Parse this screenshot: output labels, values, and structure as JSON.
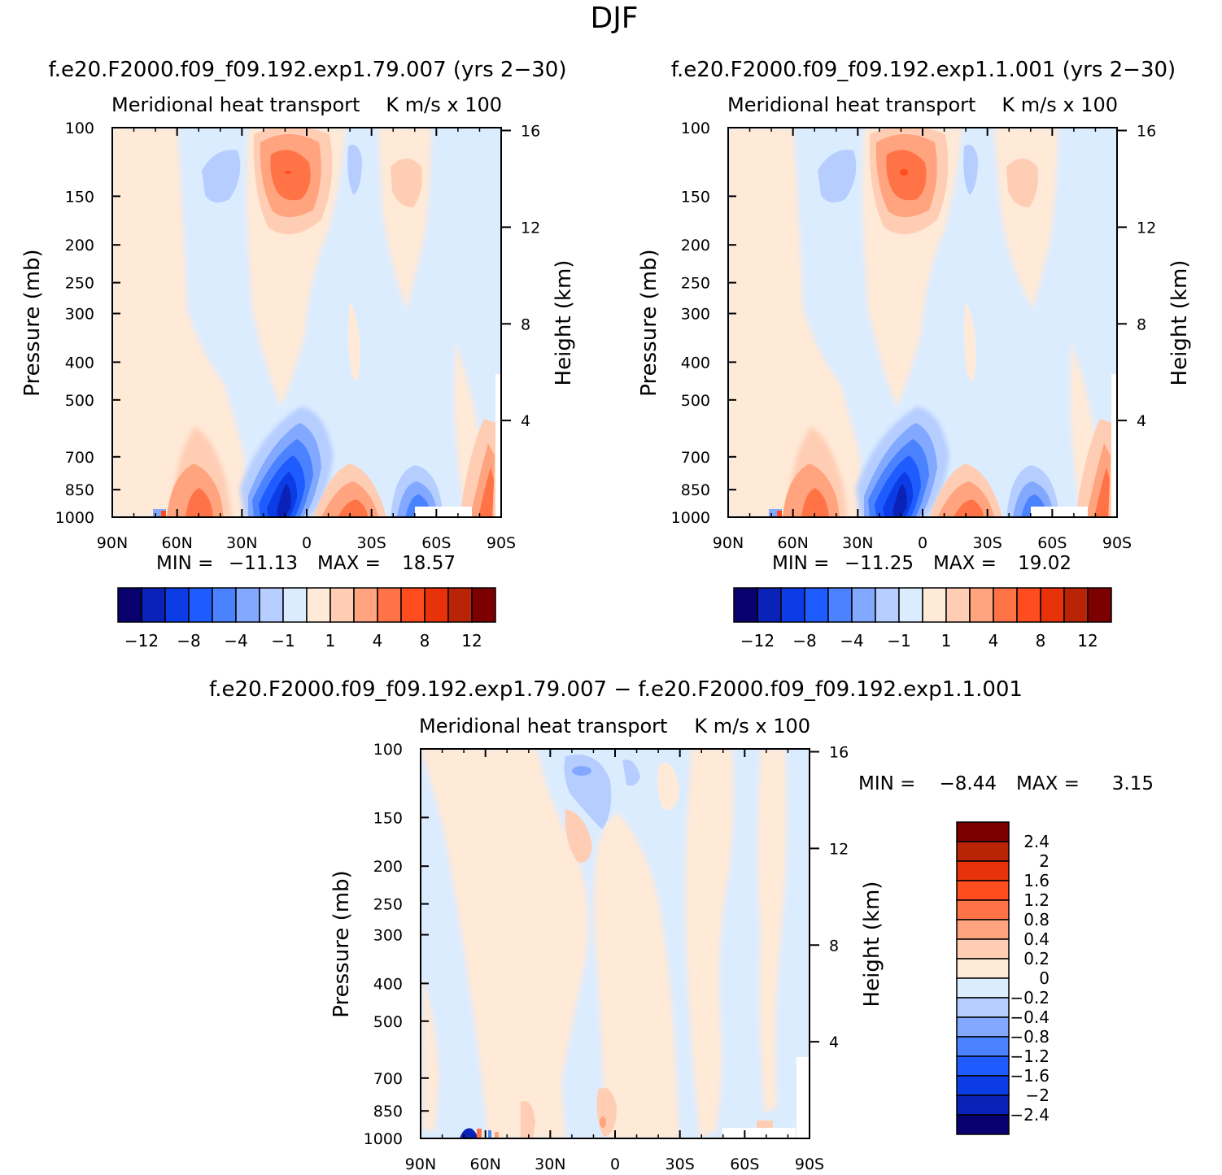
{
  "page_title": "DJF",
  "panels": [
    {
      "id": "a",
      "case_title": "f.e20.F2000.f09_f09.192.exp1.79.007 (yrs 2−30)",
      "left_title": "Meridional heat transport",
      "right_title": "K m/s x 100",
      "ylabel": "Pressure (mb)",
      "ylabel_right": "Height (km)",
      "min_label": "MIN =",
      "min_value": "−11.13",
      "max_label": "MAX =",
      "max_value": "18.57"
    },
    {
      "id": "b",
      "case_title": "f.e20.F2000.f09_f09.192.exp1.1.001 (yrs 2−30)",
      "left_title": "Meridional heat transport",
      "right_title": "K m/s x 100",
      "ylabel": "Pressure (mb)",
      "ylabel_right": "Height (km)",
      "min_label": "MIN =",
      "min_value": "−11.25",
      "max_label": "MAX =",
      "max_value": "19.02"
    },
    {
      "id": "c",
      "case_title": "f.e20.F2000.f09_f09.192.exp1.79.007 − f.e20.F2000.f09_f09.192.exp1.1.001",
      "left_title": "Meridional heat transport",
      "right_title": "K m/s x 100",
      "ylabel": "Pressure (mb)",
      "ylabel_right": "Height (km)",
      "min_label": "MIN =",
      "min_value": "−8.44",
      "max_label": "MAX =",
      "max_value": "3.15"
    }
  ],
  "axes": {
    "x_ticks": [
      "90N",
      "60N",
      "30N",
      "0",
      "30S",
      "60S",
      "90S"
    ],
    "x_values": [
      90,
      60,
      30,
      0,
      -30,
      -60,
      -90
    ],
    "p_ticks": [
      "100",
      "150",
      "200",
      "250",
      "300",
      "400",
      "500",
      "700",
      "850",
      "1000"
    ],
    "p_values": [
      100,
      150,
      200,
      250,
      300,
      400,
      500,
      700,
      850,
      1000
    ],
    "z_ticks": [
      "16",
      "12",
      "8",
      "4"
    ],
    "z_values": [
      16,
      12,
      8,
      4
    ],
    "p_range": [
      100,
      1000
    ],
    "y_scale": "log"
  },
  "colorbar_full": {
    "colors": [
      "#08006e",
      "#0a22b8",
      "#0c3ce6",
      "#1e5cff",
      "#4a82ff",
      "#82a9ff",
      "#b5ceff",
      "#dcecff",
      "#ffe9d7",
      "#ffcdb3",
      "#ffa47e",
      "#ff7347",
      "#ff4d1f",
      "#e8330a",
      "#b82405",
      "#7d0000"
    ],
    "labels": [
      "−12",
      "−8",
      "−4",
      "−1",
      "1",
      "4",
      "8",
      "12"
    ]
  },
  "colorbar_diff": {
    "colors": [
      "#7d0000",
      "#b82405",
      "#e8330a",
      "#ff4d1f",
      "#ff7347",
      "#ffa47e",
      "#ffcdb3",
      "#ffe9d7",
      "#dcecff",
      "#b5ceff",
      "#82a9ff",
      "#4a82ff",
      "#1e5cff",
      "#0c3ce6",
      "#0a22b8",
      "#08006e"
    ],
    "labels": [
      "2.4",
      "2",
      "1.6",
      "1.2",
      "0.8",
      "0.4",
      "0.2",
      "0",
      "−0.2",
      "−0.4",
      "−0.8",
      "−1.2",
      "−1.6",
      "−2",
      "−2.4"
    ]
  },
  "chart_data": [
    {
      "type": "heatmap",
      "title": "f.e20.F2000.f09_f09.192.exp1.79.007 (yrs 2−30)",
      "xlabel": "",
      "ylabel": "Pressure (mb)",
      "xlim": [
        90,
        -90
      ],
      "ylim": [
        1000,
        100
      ],
      "levels": [
        -12,
        -10,
        -8,
        -6,
        -4,
        -2,
        -1,
        0,
        1,
        2,
        4,
        6,
        8,
        10,
        12
      ],
      "features": [
        {
          "lat": 15,
          "p": 200,
          "value": 8
        },
        {
          "lat": 40,
          "p": 200,
          "value": -2
        },
        {
          "lat": 12,
          "p": 930,
          "value": -11
        },
        {
          "lat": 45,
          "p": 950,
          "value": 4
        },
        {
          "lat": -20,
          "p": 950,
          "value": 4
        },
        {
          "lat": -50,
          "p": 950,
          "value": -6
        },
        {
          "lat": -45,
          "p": 200,
          "value": 2
        },
        {
          "lat": -80,
          "p": 920,
          "value": 6
        }
      ],
      "min": -11.13,
      "max": 18.57
    },
    {
      "type": "heatmap",
      "title": "f.e20.F2000.f09_f09.192.exp1.1.001 (yrs 2−30)",
      "xlabel": "",
      "ylabel": "Pressure (mb)",
      "xlim": [
        90,
        -90
      ],
      "ylim": [
        1000,
        100
      ],
      "levels": [
        -12,
        -10,
        -8,
        -6,
        -4,
        -2,
        -1,
        0,
        1,
        2,
        4,
        6,
        8,
        10,
        12
      ],
      "features": [
        {
          "lat": 15,
          "p": 200,
          "value": 8
        },
        {
          "lat": 40,
          "p": 200,
          "value": -2
        },
        {
          "lat": 12,
          "p": 930,
          "value": -11
        },
        {
          "lat": 45,
          "p": 950,
          "value": 4
        },
        {
          "lat": -20,
          "p": 950,
          "value": 4
        },
        {
          "lat": -50,
          "p": 950,
          "value": -6
        },
        {
          "lat": -45,
          "p": 200,
          "value": 2
        },
        {
          "lat": -80,
          "p": 920,
          "value": 6
        }
      ],
      "min": -11.25,
      "max": 19.02
    },
    {
      "type": "heatmap",
      "title": "f.e20.F2000.f09_f09.192.exp1.79.007 − f.e20.F2000.f09_f09.192.exp1.1.001",
      "xlabel": "",
      "ylabel": "Pressure (mb)",
      "xlim": [
        90,
        -90
      ],
      "ylim": [
        1000,
        100
      ],
      "levels": [
        -2.4,
        -2,
        -1.6,
        -1.2,
        -0.8,
        -0.4,
        -0.2,
        0,
        0.2,
        0.4,
        0.8,
        1.2,
        1.6,
        2,
        2.4
      ],
      "features": [
        {
          "lat": -5,
          "p": 160,
          "value": -0.8
        },
        {
          "lat": 10,
          "p": 330,
          "value": 0.4
        },
        {
          "lat": 68,
          "p": 990,
          "value": -2.4
        },
        {
          "lat": 2,
          "p": 960,
          "value": 0.4
        }
      ],
      "min": -8.44,
      "max": 3.15
    }
  ]
}
